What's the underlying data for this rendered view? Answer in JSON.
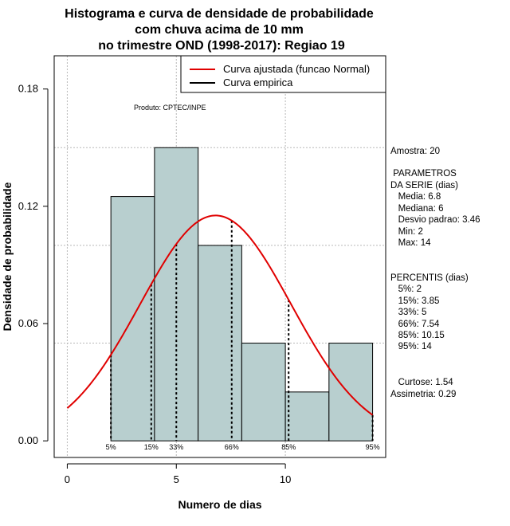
{
  "chart_data": {
    "type": "histogram",
    "title_lines": [
      "Histograma e curva de densidade de probabilidade",
      "com chuva acima de 10 mm",
      "no trimestre OND (1998-2017): Regiao 19"
    ],
    "xlabel": "Numero de dias",
    "ylabel": "Densidade de probabilidade",
    "xlim": [
      -0.6,
      14.6
    ],
    "ylim": [
      -0.0085,
      0.197
    ],
    "xticks": [
      0,
      5,
      10
    ],
    "yticks": [
      0.0,
      0.06,
      0.12,
      0.18
    ],
    "ytick_labels": [
      "0.00",
      "0.06",
      "0.12",
      "0.18"
    ],
    "xgrid": [
      0,
      5,
      10
    ],
    "ygrid": [
      0.05,
      0.1,
      0.15
    ],
    "bins": [
      {
        "x0": 2,
        "x1": 4,
        "density": 0.125
      },
      {
        "x0": 4,
        "x1": 6,
        "density": 0.15
      },
      {
        "x0": 6,
        "x1": 8,
        "density": 0.1
      },
      {
        "x0": 8,
        "x1": 10,
        "density": 0.05
      },
      {
        "x0": 10,
        "x1": 12,
        "density": 0.025
      },
      {
        "x0": 12,
        "x1": 14,
        "density": 0.05
      }
    ],
    "bar_color": "#b8cfcf",
    "normal_curve": {
      "mean": 6.8,
      "sd": 3.46,
      "xmin": 0,
      "xmax": 14,
      "color": "#e00000"
    },
    "percentiles": [
      {
        "label": "5%",
        "x": 2
      },
      {
        "label": "15%",
        "x": 3.85
      },
      {
        "label": "33%",
        "x": 5
      },
      {
        "label": "66%",
        "x": 7.54
      },
      {
        "label": "85%",
        "x": 10.15
      },
      {
        "label": "95%",
        "x": 14
      }
    ],
    "legend": {
      "placement": "top-right",
      "entries": [
        {
          "label": "Curva ajustada (funcao Normal)",
          "color": "#e00000"
        },
        {
          "label": "Curva empirica",
          "color": "#000000"
        }
      ]
    },
    "annotation": "Produto: CPTEC/INPE",
    "side_text": [
      "Amostra: 20",
      " PARAMETROS",
      "DA SERIE (dias)",
      "   Media: 6.8",
      "   Mediana: 6",
      "   Desvio padrao: 3.46",
      "   Min: 2",
      "   Max: 14",
      "PERCENTIS (dias)",
      "   5%: 2",
      "   15%: 3.85",
      "   33%: 5",
      "   66%: 7.54",
      "   85%: 10.15",
      "   95%: 14",
      "   Curtose: 1.54",
      "Assimetria: 0.29"
    ]
  }
}
